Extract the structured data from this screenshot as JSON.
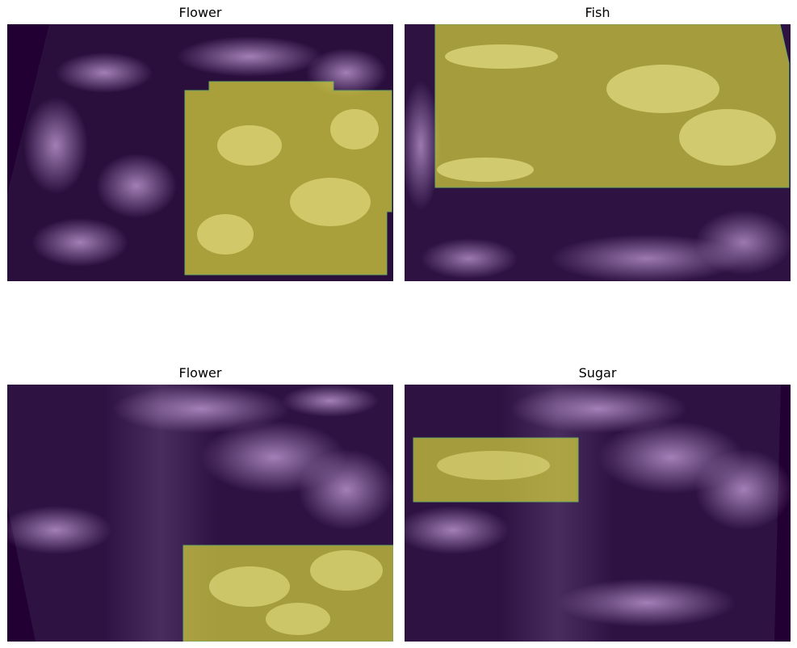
{
  "figure": {
    "panels": [
      {
        "title": "Flower",
        "mask_label": "Flower"
      },
      {
        "title": "Fish",
        "mask_label": "Fish"
      },
      {
        "title": "Flower",
        "mask_label": "Flower"
      },
      {
        "title": "Sugar",
        "mask_label": "Sugar"
      }
    ]
  },
  "colors": {
    "ocean": "#2a0f3d",
    "cloud": "#9a76b0",
    "cloud_bright": "#c7a9d2",
    "mask_fill": "#d4d23c",
    "mask_edge": "#6aa860",
    "no_data": "#220033"
  }
}
